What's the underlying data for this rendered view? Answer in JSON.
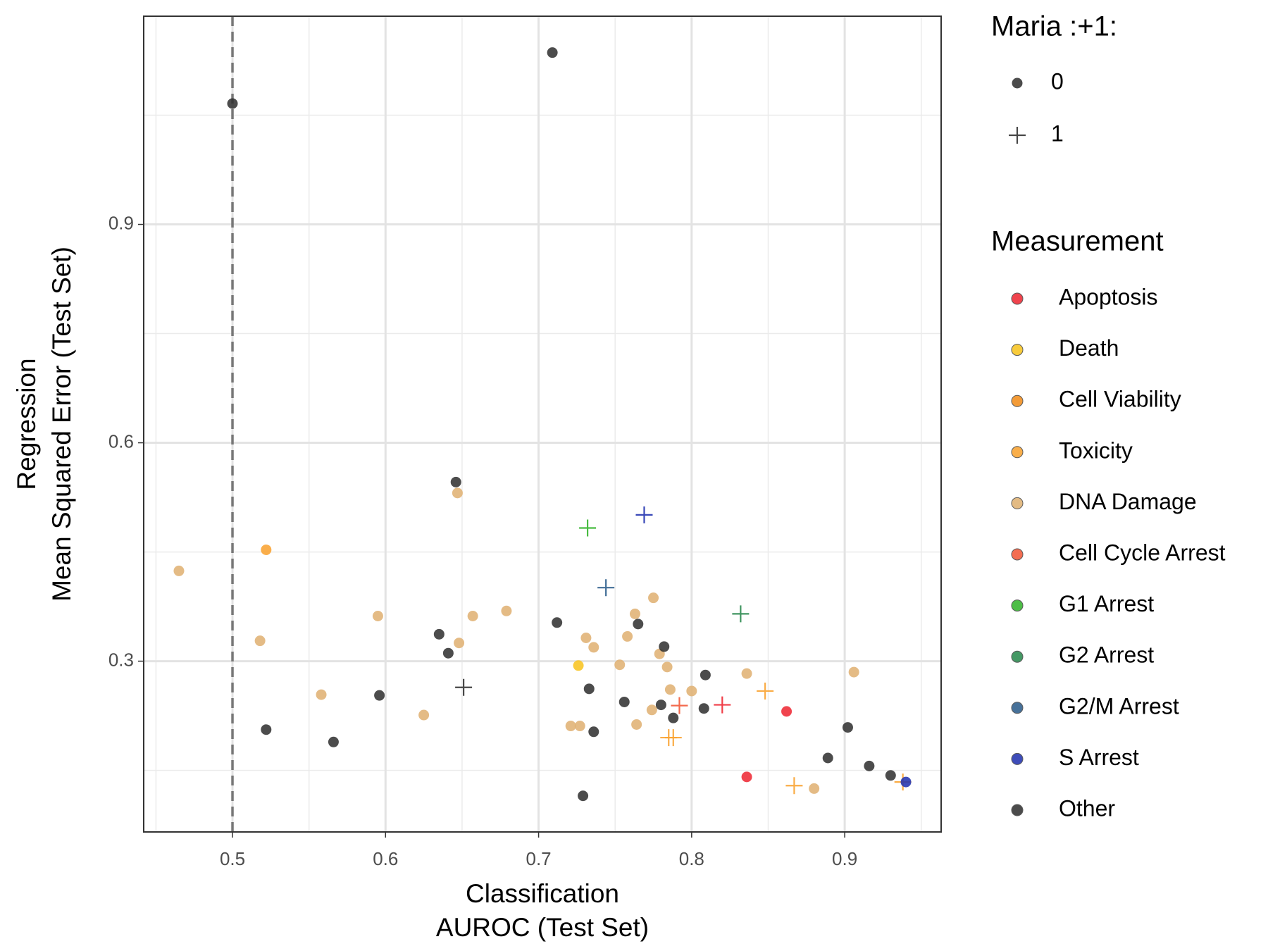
{
  "chart_data": {
    "type": "scatter",
    "xlabel": [
      "Classification",
      "AUROC (Test Set)"
    ],
    "ylabel": [
      "Regression",
      "Mean Squared Error (Test Set)"
    ],
    "xlim": [
      0.442,
      0.963
    ],
    "ylim": [
      0.0654,
      1.186
    ],
    "xticks": [
      0.5,
      0.6,
      0.7,
      0.8,
      0.9
    ],
    "yticks": [
      0.3,
      0.6,
      0.9
    ],
    "xminor": [
      0.45,
      0.55,
      0.65,
      0.75,
      0.85,
      0.95
    ],
    "yminor": [
      0.15,
      0.45,
      0.75,
      1.05
    ],
    "grid": true,
    "vline": 0.5,
    "shape_legend": {
      "title": "Maria :+1:",
      "labels": [
        "0",
        "1"
      ]
    },
    "color_legend_title": "Measurement",
    "series": [
      {
        "name": "Apoptosis",
        "color": "#ee2a35",
        "x": [
          0.862,
          0.836,
          0.82
        ],
        "y": [
          0.231,
          0.141,
          0.24
        ],
        "maria": [
          "0",
          "0",
          "1"
        ]
      },
      {
        "name": "Death",
        "color": "#f8c421",
        "x": [
          0.726
        ],
        "y": [
          0.294
        ],
        "maria": [
          "0"
        ]
      },
      {
        "name": "Cell Viability",
        "color": "#f28e1c",
        "x": [],
        "y": [],
        "maria": []
      },
      {
        "name": "Toxicity",
        "color": "#f9a332",
        "x": [
          0.522,
          0.848,
          0.867,
          0.785,
          0.788,
          0.938
        ],
        "y": [
          0.453,
          0.259,
          0.129,
          0.195,
          0.195,
          0.134
        ],
        "maria": [
          "0",
          "1",
          "1",
          "1",
          "1",
          "1"
        ]
      },
      {
        "name": "DNA Damage",
        "color": "#e0b274",
        "x": [
          0.465,
          0.647,
          0.595,
          0.518,
          0.648,
          0.657,
          0.679,
          0.558,
          0.625,
          0.721,
          0.727,
          0.731,
          0.736,
          0.753,
          0.763,
          0.775,
          0.758,
          0.779,
          0.784,
          0.786,
          0.8,
          0.764,
          0.774,
          0.836,
          0.906,
          0.88
        ],
        "y": [
          0.424,
          0.531,
          0.362,
          0.328,
          0.325,
          0.362,
          0.369,
          0.254,
          0.226,
          0.211,
          0.211,
          0.332,
          0.319,
          0.295,
          0.365,
          0.387,
          0.334,
          0.31,
          0.292,
          0.261,
          0.259,
          0.213,
          0.233,
          0.283,
          0.285,
          0.125
        ],
        "maria": [
          "0",
          "0",
          "0",
          "0",
          "0",
          "0",
          "0",
          "0",
          "0",
          "0",
          "0",
          "0",
          "0",
          "0",
          "0",
          "0",
          "0",
          "0",
          "0",
          "0",
          "0",
          "0",
          "0",
          "0",
          "0",
          "0"
        ]
      },
      {
        "name": "Cell Cycle Arrest",
        "color": "#f25a3a",
        "x": [
          0.792
        ],
        "y": [
          0.239
        ],
        "maria": [
          "1"
        ]
      },
      {
        "name": "G1 Arrest",
        "color": "#35b52e",
        "x": [
          0.732
        ],
        "y": [
          0.483
        ],
        "maria": [
          "1"
        ]
      },
      {
        "name": "G2 Arrest",
        "color": "#2b8a4f",
        "x": [
          0.832
        ],
        "y": [
          0.365
        ],
        "maria": [
          "1"
        ]
      },
      {
        "name": "G2/M Arrest",
        "color": "#2e5e8c",
        "x": [
          0.744
        ],
        "y": [
          0.401
        ],
        "maria": [
          "1"
        ]
      },
      {
        "name": "S Arrest",
        "color": "#2434b0",
        "x": [
          0.769,
          0.94
        ],
        "y": [
          0.501,
          0.134
        ],
        "maria": [
          "1",
          "0"
        ]
      },
      {
        "name": "Other",
        "color": "#333333",
        "x": [
          0.5,
          0.709,
          0.646,
          0.712,
          0.635,
          0.641,
          0.765,
          0.782,
          0.733,
          0.756,
          0.78,
          0.809,
          0.808,
          0.788,
          0.736,
          0.596,
          0.522,
          0.566,
          0.729,
          0.902,
          0.889,
          0.916,
          0.93,
          0.651
        ],
        "y": [
          1.066,
          1.136,
          0.546,
          0.353,
          0.337,
          0.311,
          0.351,
          0.32,
          0.262,
          0.244,
          0.24,
          0.281,
          0.235,
          0.222,
          0.203,
          0.253,
          0.206,
          0.189,
          0.115,
          0.209,
          0.167,
          0.156,
          0.143,
          0.264
        ],
        "maria": [
          "0",
          "0",
          "0",
          "0",
          "0",
          "0",
          "0",
          "0",
          "0",
          "0",
          "0",
          "0",
          "0",
          "0",
          "0",
          "0",
          "0",
          "0",
          "0",
          "0",
          "0",
          "0",
          "0",
          "1"
        ]
      }
    ]
  }
}
